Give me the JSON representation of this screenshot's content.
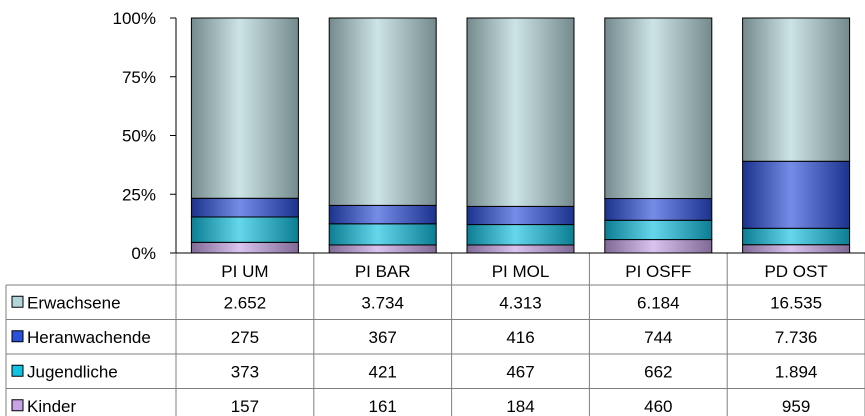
{
  "chart_data": {
    "type": "bar",
    "stacked": "percent",
    "categories": [
      "PI UM",
      "PI BAR",
      "PI MOL",
      "PI OSFF",
      "PD OST"
    ],
    "series": [
      {
        "name": "Kinder",
        "display": [
          "157",
          "161",
          "184",
          "460",
          "959"
        ],
        "values": [
          157,
          161,
          184,
          460,
          959
        ],
        "color": "#c7a2e6"
      },
      {
        "name": "Jugendliche",
        "display": [
          "373",
          "421",
          "467",
          "662",
          "1.894"
        ],
        "values": [
          373,
          421,
          467,
          662,
          1894
        ],
        "color": "#12c2e2"
      },
      {
        "name": "Heranwachende",
        "display": [
          "275",
          "367",
          "416",
          "744",
          "7.736"
        ],
        "values": [
          275,
          367,
          416,
          744,
          7736
        ],
        "color": "#2a4fd8"
      },
      {
        "name": "Erwachsene",
        "display": [
          "2.652",
          "3.734",
          "4.313",
          "6.184",
          "16.535"
        ],
        "values": [
          2652,
          3734,
          4313,
          6184,
          16535
        ],
        "color": "#b2d5d9"
      }
    ],
    "yticks": [
      "0%",
      "25%",
      "50%",
      "75%",
      "100%"
    ],
    "ylim": [
      0,
      100
    ],
    "legend": "table-left"
  }
}
